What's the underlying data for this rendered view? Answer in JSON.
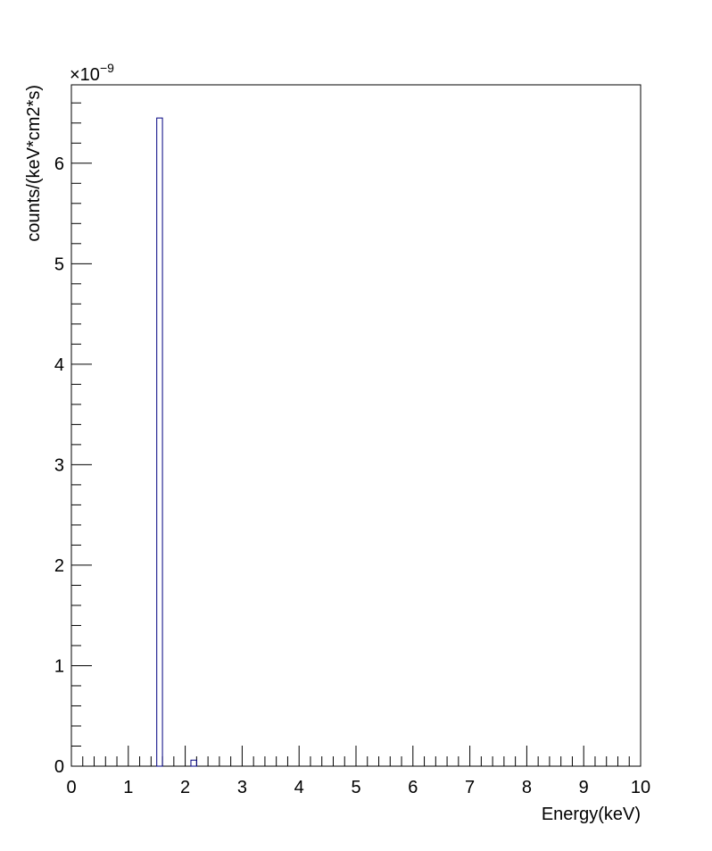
{
  "chart_data": {
    "type": "bar",
    "title": "",
    "xlabel": "Energy(keV)",
    "ylabel": "counts/(keV*cm2*s)",
    "y_exponent": {
      "base": "×10",
      "power": "−9"
    },
    "xlim": [
      0,
      10
    ],
    "ylim": [
      0,
      6.78
    ],
    "y_scale_factor": 1e-09,
    "x_major_ticks": [
      0,
      1,
      2,
      3,
      4,
      5,
      6,
      7,
      8,
      9,
      10
    ],
    "x_tick_labels": [
      "0",
      "1",
      "2",
      "3",
      "4",
      "5",
      "6",
      "7",
      "8",
      "9",
      "10"
    ],
    "y_major_ticks": [
      0,
      1,
      2,
      3,
      4,
      5,
      6
    ],
    "y_tick_labels": [
      "0",
      "1",
      "2",
      "3",
      "4",
      "5",
      "6"
    ],
    "grid": false,
    "bin_width": 0.1,
    "bins": [
      {
        "x_low": 1.5,
        "x_high": 1.6,
        "value": 6.45
      },
      {
        "x_low": 2.1,
        "x_high": 2.2,
        "value": 0.06
      }
    ]
  }
}
